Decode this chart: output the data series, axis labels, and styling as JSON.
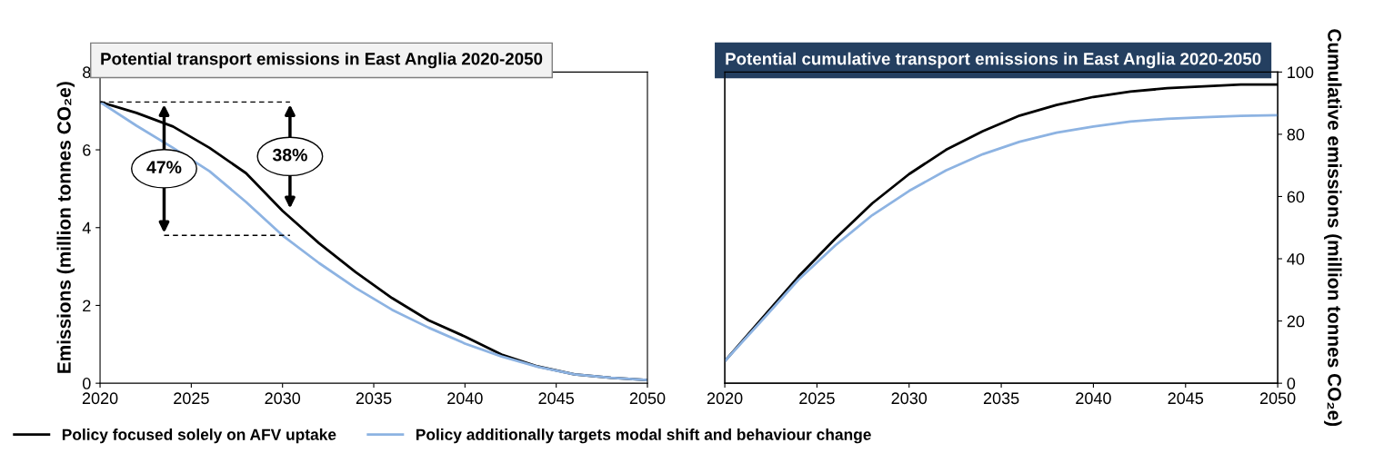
{
  "chart_data": [
    {
      "type": "line",
      "title": "Potential transport emissions in East Anglia 2020-2050",
      "ylabel": "Emissions (million tonnes CO₂e)",
      "x": [
        2020,
        2022,
        2024,
        2026,
        2028,
        2030,
        2032,
        2034,
        2036,
        2038,
        2040,
        2042,
        2044,
        2046,
        2048,
        2050
      ],
      "series": [
        {
          "name": "Policy focused solely on AFV uptake",
          "color": "#000000",
          "values": [
            7.23,
            6.95,
            6.6,
            6.05,
            5.4,
            4.43,
            3.6,
            2.86,
            2.19,
            1.62,
            1.2,
            0.74,
            0.43,
            0.23,
            0.14,
            0.08
          ]
        },
        {
          "name": "Policy additionally targets modal shift and behaviour change",
          "color": "#8db3e2",
          "values": [
            7.23,
            6.62,
            6.05,
            5.45,
            4.66,
            3.8,
            3.09,
            2.45,
            1.89,
            1.43,
            1.02,
            0.69,
            0.42,
            0.23,
            0.14,
            0.08
          ]
        }
      ],
      "annotations": [
        "47%",
        "38%"
      ],
      "xlim": [
        2020,
        2050
      ],
      "xticks": [
        2020,
        2025,
        2030,
        2035,
        2040,
        2045,
        2050
      ],
      "ylim": [
        0,
        8
      ],
      "yticks": [
        0,
        2,
        4,
        6,
        8
      ],
      "legend": "bottom",
      "marker": "none",
      "line_style": "solid",
      "grid": false
    },
    {
      "type": "line",
      "title": "Potential cumulative transport emissions in East Anglia 2020-2050",
      "y2label": "Cumulative emissions (million tonnes CO₂e)",
      "x": [
        2020,
        2022,
        2024,
        2026,
        2028,
        2030,
        2032,
        2034,
        2036,
        2038,
        2040,
        2042,
        2044,
        2046,
        2048,
        2050
      ],
      "series": [
        {
          "color": "#000000",
          "axis": "y2",
          "values": [
            7.1,
            20.7,
            34.3,
            46.5,
            57.8,
            67.2,
            75,
            81,
            86,
            89.4,
            92,
            93.7,
            94.8,
            95.4,
            96,
            96
          ]
        },
        {
          "color": "#8db3e2",
          "axis": "y2",
          "values": [
            7.1,
            20.1,
            33.3,
            44.3,
            54,
            61.8,
            68.4,
            73.6,
            77.6,
            80.5,
            82.5,
            84.1,
            85,
            85.5,
            85.9,
            86.1
          ]
        }
      ],
      "xlim": [
        2020,
        2050
      ],
      "xticks": [
        2020,
        2025,
        2030,
        2035,
        2040,
        2045,
        2050
      ],
      "y2lim": [
        0,
        100
      ],
      "y2ticks": [
        0,
        20,
        40,
        60,
        80,
        100
      ],
      "marker": "none",
      "line_style": "solid",
      "grid": false
    }
  ]
}
